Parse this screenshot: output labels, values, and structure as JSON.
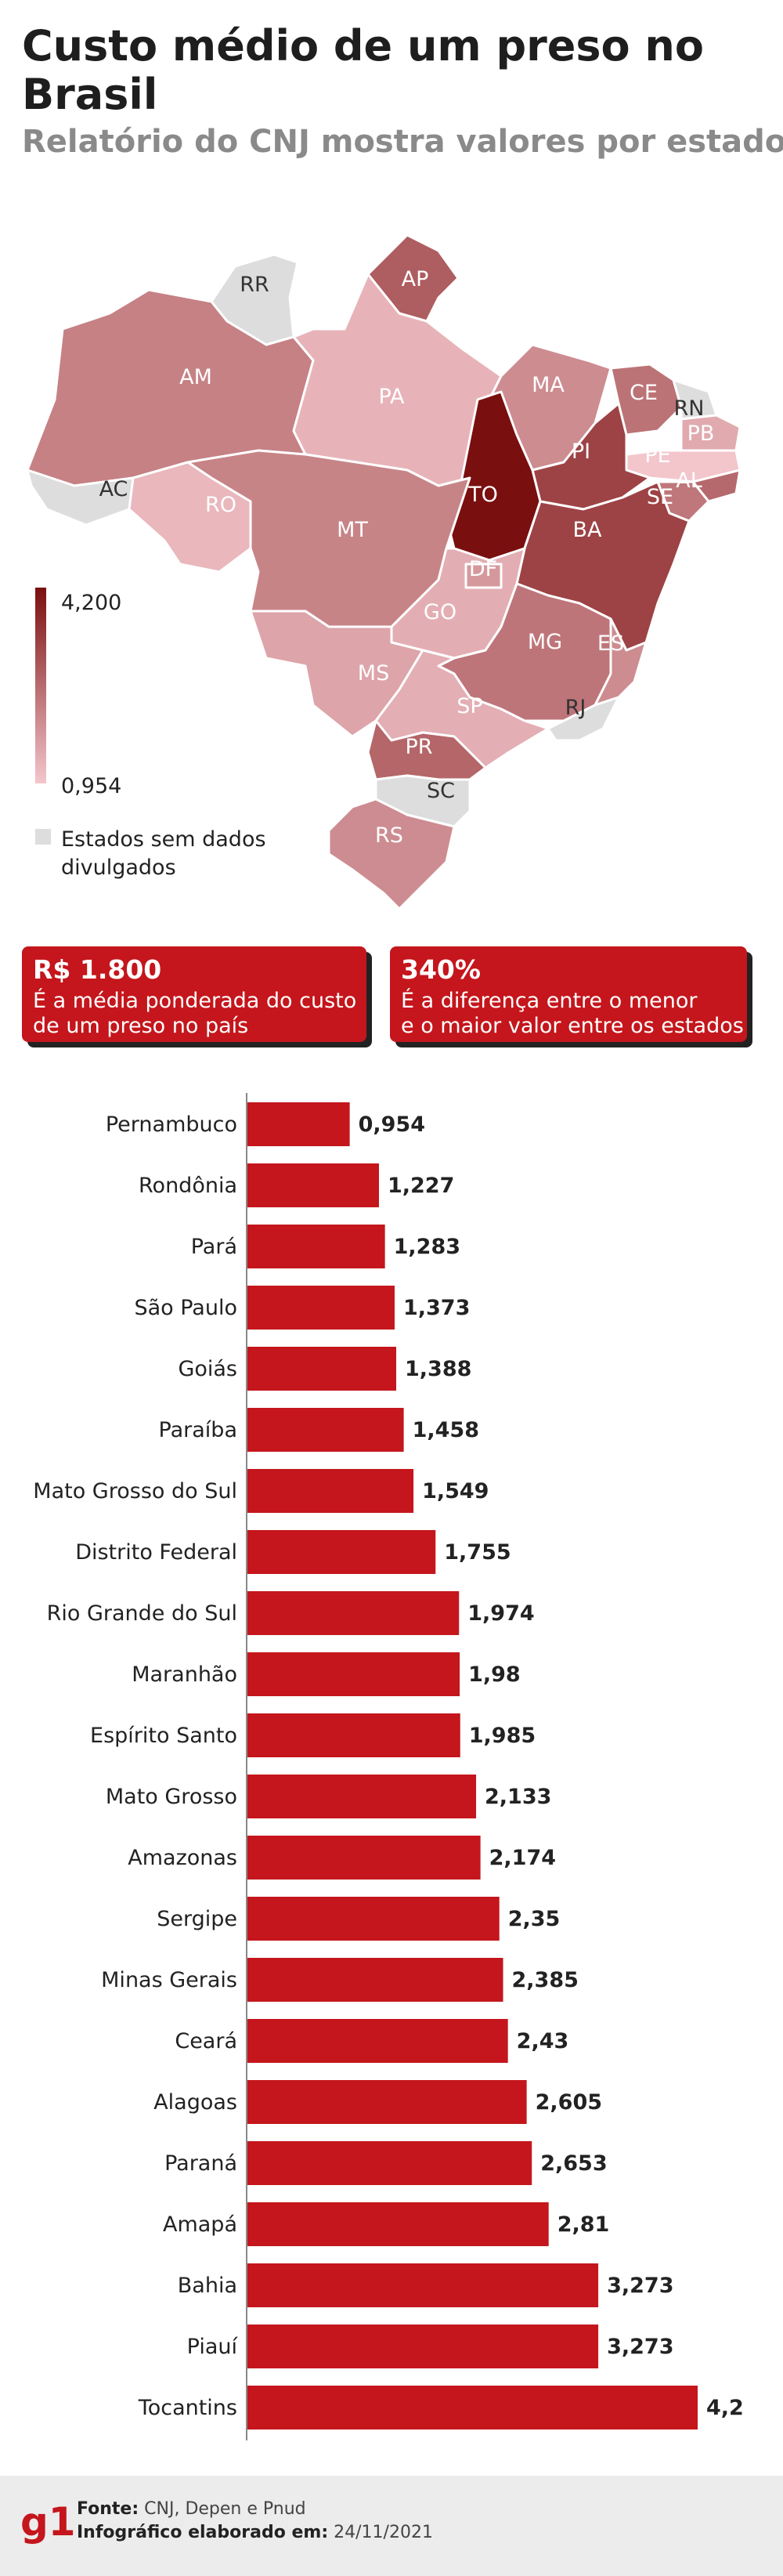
{
  "header": {
    "title": "Custo médio de um preso no Brasil",
    "subtitle": "Relatório do CNJ mostra valores por estado"
  },
  "legend": {
    "max_label": "4,200",
    "min_label": "0,954",
    "no_data_label_line1": "Estados sem dados",
    "no_data_label_line2": "divulgados",
    "color_max": "#7a0f0f",
    "color_min": "#f3c6cc",
    "color_no_data": "#dddddd"
  },
  "map": {
    "states": [
      {
        "code": "RR",
        "value": null
      },
      {
        "code": "AP",
        "value": 2.81
      },
      {
        "code": "AM",
        "value": 2.174
      },
      {
        "code": "PA",
        "value": 1.283
      },
      {
        "code": "MA",
        "value": 1.98
      },
      {
        "code": "CE",
        "value": 2.43
      },
      {
        "code": "RN",
        "value": null
      },
      {
        "code": "PB",
        "value": 1.458
      },
      {
        "code": "PE",
        "value": 0.954
      },
      {
        "code": "AL",
        "value": 2.605
      },
      {
        "code": "SE",
        "value": 2.35
      },
      {
        "code": "PI",
        "value": 3.273
      },
      {
        "code": "TO",
        "value": 4.2
      },
      {
        "code": "BA",
        "value": 3.273
      },
      {
        "code": "AC",
        "value": null
      },
      {
        "code": "RO",
        "value": 1.227
      },
      {
        "code": "MT",
        "value": 2.133
      },
      {
        "code": "DF",
        "value": 1.755
      },
      {
        "code": "GO",
        "value": 1.388
      },
      {
        "code": "MG",
        "value": 2.385
      },
      {
        "code": "ES",
        "value": 1.985
      },
      {
        "code": "MS",
        "value": 1.549
      },
      {
        "code": "SP",
        "value": 1.373
      },
      {
        "code": "RJ",
        "value": null
      },
      {
        "code": "PR",
        "value": 2.653
      },
      {
        "code": "SC",
        "value": null
      },
      {
        "code": "RS",
        "value": 1.974
      }
    ]
  },
  "stats": [
    {
      "value": "R$ 1.800",
      "line1": "É a média ponderada do custo",
      "line2": "de um preso no país"
    },
    {
      "value": "340%",
      "line1": "É a diferença entre o menor",
      "line2": "e o maior valor entre os estados"
    }
  ],
  "chart_data": {
    "type": "bar",
    "orientation": "horizontal",
    "categories": [
      "Pernambuco",
      "Rondônia",
      "Pará",
      "São Paulo",
      "Goiás",
      "Paraíba",
      "Mato Grosso do Sul",
      "Distrito Federal",
      "Rio Grande do Sul",
      "Maranhão",
      "Espírito Santo",
      "Mato Grosso",
      "Amazonas",
      "Sergipe",
      "Minas Gerais",
      "Ceará",
      "Alagoas",
      "Paraná",
      "Amapá",
      "Bahia",
      "Piauí",
      "Tocantins"
    ],
    "values": [
      0.954,
      1.227,
      1.283,
      1.373,
      1.388,
      1.458,
      1.549,
      1.755,
      1.974,
      1.98,
      1.985,
      2.133,
      2.174,
      2.35,
      2.385,
      2.43,
      2.605,
      2.653,
      2.81,
      3.273,
      3.273,
      4.2
    ],
    "value_labels": [
      "0,954",
      "1,227",
      "1,283",
      "1,373",
      "1,388",
      "1,458",
      "1,549",
      "1,755",
      "1,974",
      "1,98",
      "1,985",
      "2,133",
      "2,174",
      "2,35",
      "2,385",
      "2,43",
      "2,605",
      "2,653",
      "2,81",
      "3,273",
      "3,273",
      "4,2"
    ],
    "xlim": [
      0,
      4.2
    ],
    "bar_color": "#c4161c"
  },
  "footer": {
    "logo": "g1",
    "source_label": "Fonte:",
    "source_text": "CNJ, Depen e Pnud",
    "date_label": "Infográfico elaborado em:",
    "date_text": "24/11/2021"
  }
}
